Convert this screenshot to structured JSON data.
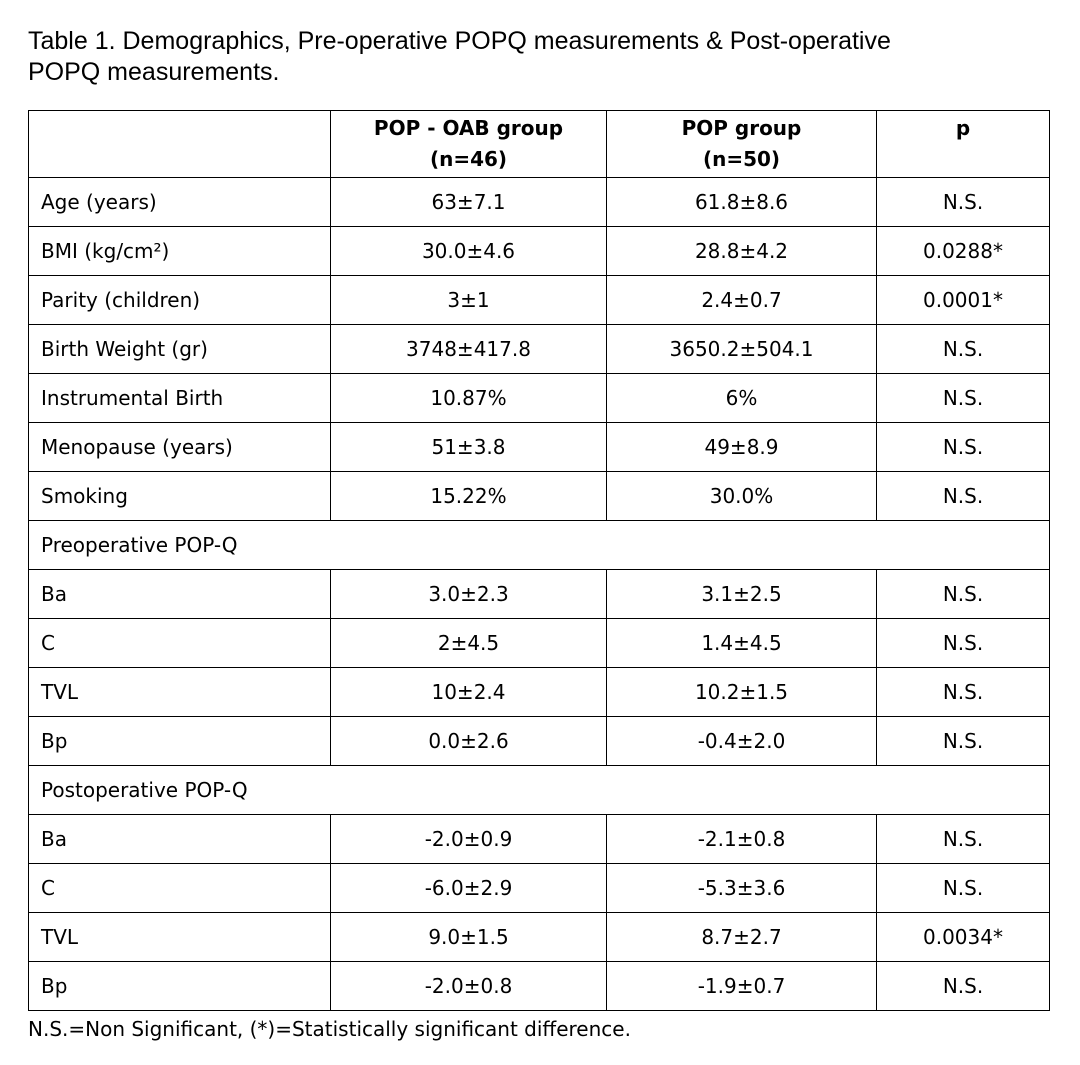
{
  "caption": {
    "line1": "Table 1. Demographics, Pre-operative POPQ measurements & Post-operative",
    "line2": "POPQ measurements."
  },
  "table": {
    "headers": {
      "col1": "",
      "col2_line1": "POP - OAB group",
      "col2_line2": "(n=46)",
      "col3_line1": "POP group",
      "col3_line2": "(n=50)",
      "col4": "p"
    },
    "demographics": [
      {
        "label": "Age (years)",
        "oab": "63±7.1",
        "pop": "61.8±8.6",
        "p": "N.S."
      },
      {
        "label": "BMI (kg/cm²)",
        "oab": "30.0±4.6",
        "pop": "28.8±4.2",
        "p": "0.0288*"
      },
      {
        "label": "Parity (children)",
        "oab": "3±1",
        "pop": "2.4±0.7",
        "p": "0.0001*"
      },
      {
        "label": "Birth Weight (gr)",
        "oab": "3748±417.8",
        "pop": "3650.2±504.1",
        "p": "N.S."
      },
      {
        "label": "Instrumental Birth",
        "oab": "10.87%",
        "pop": "6%",
        "p": "N.S."
      },
      {
        "label": "Menopause (years)",
        "oab": "51±3.8",
        "pop": "49±8.9",
        "p": "N.S."
      },
      {
        "label": "Smoking",
        "oab": "15.22%",
        "pop": "30.0%",
        "p": "N.S."
      }
    ],
    "preop_title": "Preoperative POP-Q",
    "preop": [
      {
        "label": "Ba",
        "oab": "3.0±2.3",
        "pop": "3.1±2.5",
        "p": "N.S."
      },
      {
        "label": "C",
        "oab": "2±4.5",
        "pop": "1.4±4.5",
        "p": "N.S."
      },
      {
        "label": "TVL",
        "oab": "10±2.4",
        "pop": "10.2±1.5",
        "p": "N.S."
      },
      {
        "label": "Bp",
        "oab": "0.0±2.6",
        "pop": "-0.4±2.0",
        "p": "N.S."
      }
    ],
    "postop_title": "Postoperative POP-Q",
    "postop": [
      {
        "label": "Ba",
        "oab": "-2.0±0.9",
        "pop": "-2.1±0.8",
        "p": "N.S."
      },
      {
        "label": "C",
        "oab": "-6.0±2.9",
        "pop": "-5.3±3.6",
        "p": "N.S."
      },
      {
        "label": "TVL",
        "oab": "9.0±1.5",
        "pop": "8.7±2.7",
        "p": "0.0034*"
      },
      {
        "label": "Bp",
        "oab": "-2.0±0.8",
        "pop": "-1.9±0.7",
        "p": "N.S."
      }
    ]
  },
  "footnote": "N.S.=Non Significant, (*)=Statistically significant difference."
}
